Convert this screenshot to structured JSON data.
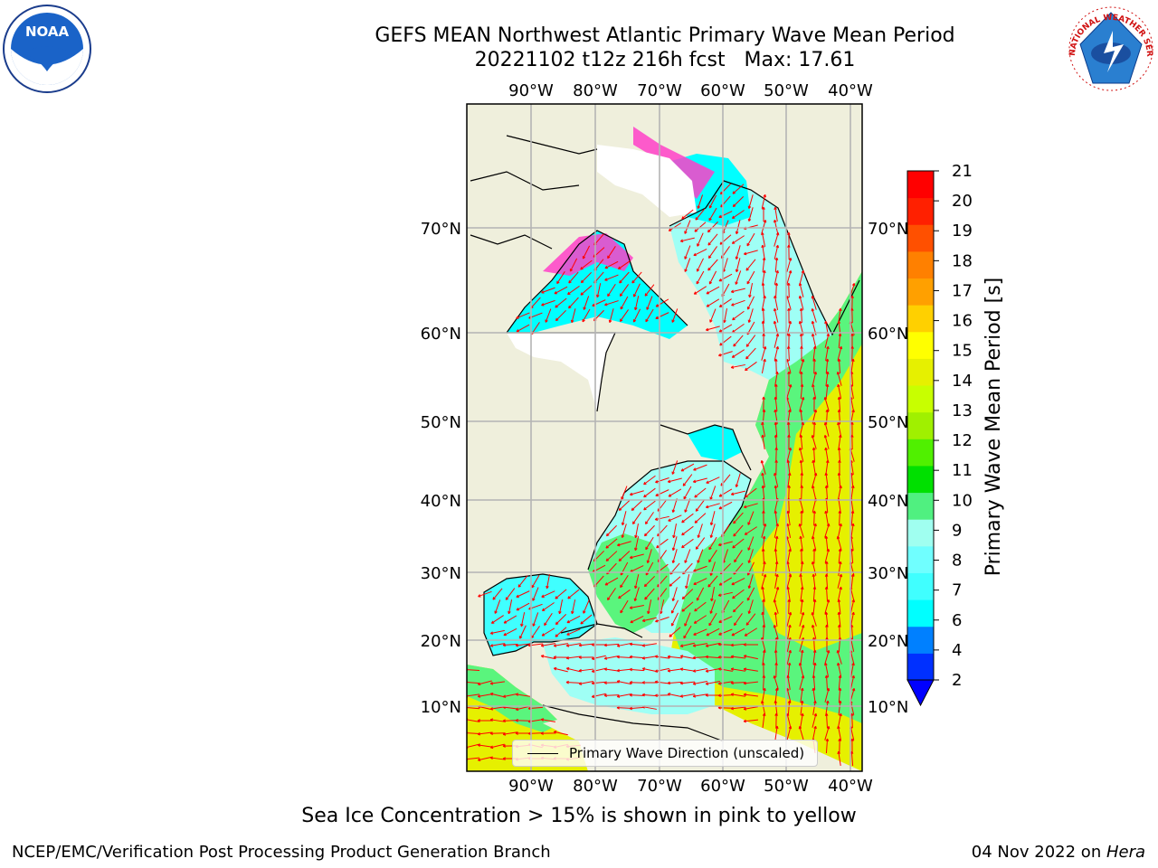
{
  "title": {
    "line1": "GEFS MEAN Northwest Atlantic Primary Wave Mean Period",
    "line2": "20221102 t12z 216h fcst   Max: 17.61"
  },
  "logos": {
    "left": {
      "name": "noaa-logo",
      "text": "NOAA"
    },
    "right": {
      "name": "nws-logo",
      "text": "NATIONAL WEATHER SERVICE"
    }
  },
  "map": {
    "lon_labels": [
      "90°W",
      "80°W",
      "70°W",
      "60°W",
      "50°W",
      "40°W"
    ],
    "lat_labels": [
      "10°N",
      "20°N",
      "30°N",
      "40°N",
      "50°N",
      "60°N",
      "70°N"
    ],
    "legend": "Primary Wave Direction (unscaled)",
    "colors": {
      "land": "#efefdc",
      "ocean_short_period": "#00ffff",
      "ocean_light": "#9ffff5",
      "ocean_mid": "#5af57d",
      "ocean_long_period": "#e6f000",
      "sea_ice": "#ff40c8",
      "arrows": "#ff0000",
      "grid": "#b4b4b4"
    }
  },
  "colorbar": {
    "label": "Primary Wave Mean Period [s]",
    "ticks": [
      "2",
      "4",
      "6",
      "7",
      "8",
      "9",
      "10",
      "11",
      "12",
      "13",
      "14",
      "15",
      "16",
      "17",
      "18",
      "19",
      "20",
      "21"
    ],
    "colors": [
      "#0030ff",
      "#0080ff",
      "#00ffff",
      "#40ffff",
      "#70ffff",
      "#a0fff0",
      "#50f080",
      "#00e000",
      "#50f000",
      "#a0f000",
      "#c8ff00",
      "#e6f000",
      "#ffff00",
      "#ffd000",
      "#ffa000",
      "#ff8000",
      "#ff5000",
      "#ff2000",
      "#ff0000"
    ],
    "under_color": "#0000ff"
  },
  "caption": "Sea Ice Concentration > 15% is shown in pink to yellow",
  "footer": {
    "left": "NCEP/EMC/Verification Post Processing Product Generation Branch",
    "date": "04 Nov 2022 on ",
    "host": "Hera"
  }
}
